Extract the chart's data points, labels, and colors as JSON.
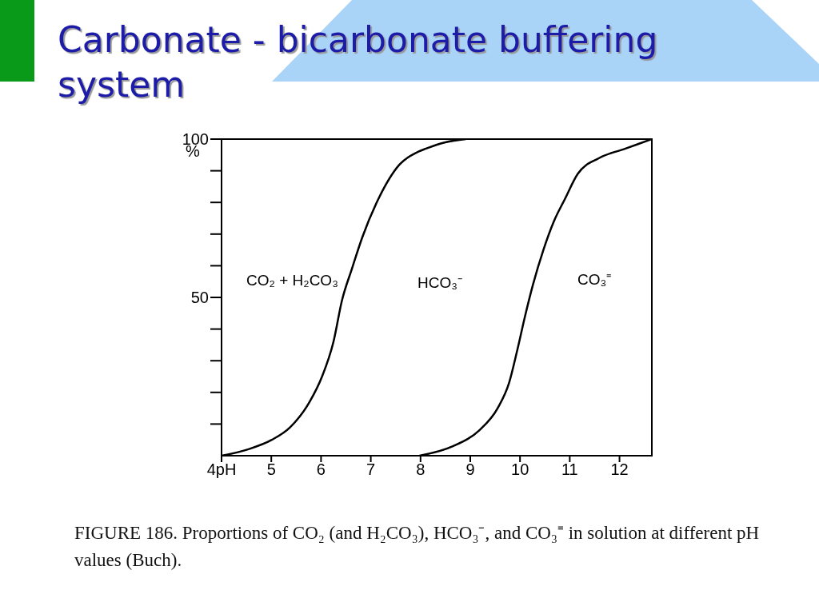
{
  "chart_data": {
    "type": "line",
    "title": "Carbonate - bicarbonate buffering system",
    "ylabel": "%",
    "xlim": [
      4,
      12.65
    ],
    "xticks": [
      {
        "value": 4,
        "label": "4pH"
      },
      5,
      6,
      7,
      8,
      9,
      10,
      11,
      12
    ],
    "ylim": [
      0,
      100
    ],
    "yticks": [
      {
        "value": 10,
        "label": null
      },
      {
        "value": 20,
        "label": null
      },
      {
        "value": 30,
        "label": null
      },
      {
        "value": 40,
        "label": null
      },
      50,
      {
        "value": 60,
        "label": null
      },
      {
        "value": 70,
        "label": null
      },
      {
        "value": 80,
        "label": null
      },
      {
        "value": 90,
        "label": null
      },
      100
    ],
    "series": [
      {
        "color": "#000000",
        "x": [
          4,
          4.53,
          5.01,
          5.38,
          5.77,
          6.02,
          6.25,
          6.42,
          6.62,
          6.83,
          7.15,
          7.58,
          7.95,
          8.11,
          8.5,
          8.91
        ],
        "values": [
          0,
          2,
          5,
          9,
          17,
          25,
          36,
          49,
          59,
          69,
          81,
          92,
          96,
          97,
          99,
          100
        ]
      },
      {
        "color": "#000000",
        "x": [
          7.98,
          8.65,
          9.18,
          9.55,
          9.78,
          9.94,
          10.1,
          10.26,
          10.47,
          10.68,
          10.9,
          11.16,
          11.59,
          12.12,
          12.65
        ],
        "values": [
          0,
          3,
          8,
          15,
          23,
          33,
          44,
          54,
          65,
          74,
          81,
          89,
          94,
          97,
          100
        ]
      }
    ],
    "annotations": [
      "CO₂ + H₂CO₃",
      "HCO₃⁻",
      "CO₃⁼",
      "FIGURE 186. Proportions of CO₂ (and H₂CO₃), HCO₃⁻, and CO₃⁼ in solution at different pH values (Buch)."
    ],
    "line_style": "solid"
  }
}
